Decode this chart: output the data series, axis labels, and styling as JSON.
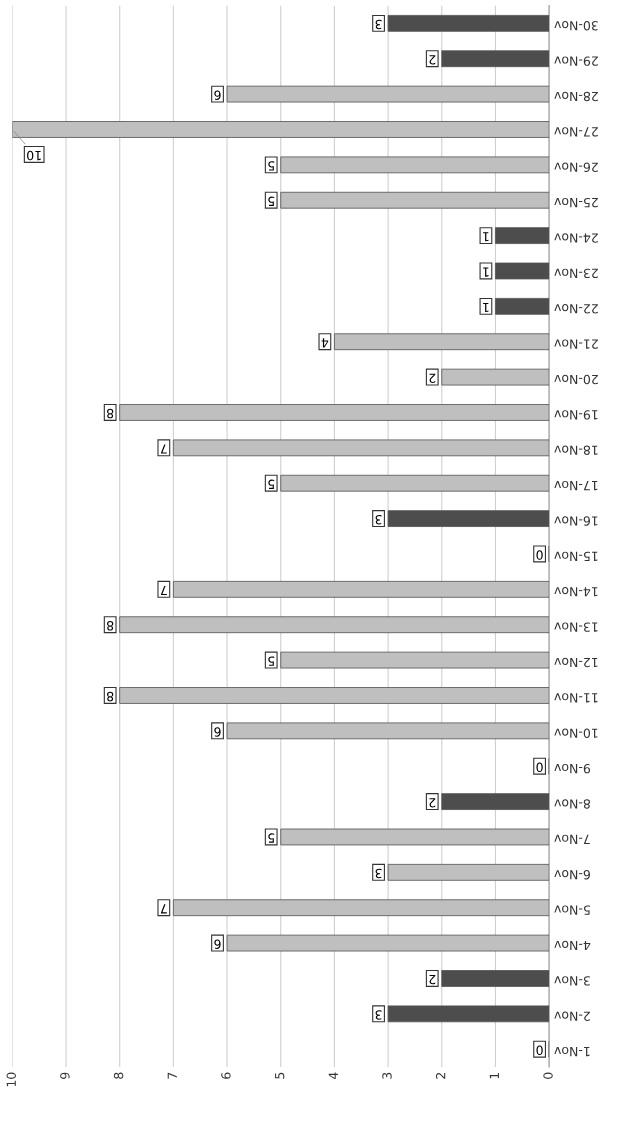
{
  "chart_data": {
    "type": "bar",
    "orientation": "horizontal",
    "categories": [
      "30-Nov",
      "29-Nov",
      "28-Nov",
      "27-Nov",
      "26-Nov",
      "25-Nov",
      "24-Nov",
      "23-Nov",
      "22-Nov",
      "21-Nov",
      "20-Nov",
      "19-Nov",
      "18-Nov",
      "17-Nov",
      "16-Nov",
      "15-Nov",
      "14-Nov",
      "13-Nov",
      "12-Nov",
      "11-Nov",
      "10-Nov",
      "9-Nov",
      "8-Nov",
      "7-Nov",
      "6-Nov",
      "5-Nov",
      "4-Nov",
      "3-Nov",
      "2-Nov",
      "1-Nov"
    ],
    "values": [
      3,
      2,
      6,
      10,
      5,
      5,
      1,
      1,
      1,
      4,
      2,
      8,
      7,
      5,
      3,
      0,
      7,
      8,
      5,
      8,
      6,
      0,
      2,
      5,
      3,
      7,
      6,
      2,
      3,
      0
    ],
    "colors": [
      "#4d4d4d",
      "#4d4d4d",
      "#bfbfbf",
      "#bfbfbf",
      "#bfbfbf",
      "#bfbfbf",
      "#4d4d4d",
      "#4d4d4d",
      "#4d4d4d",
      "#bfbfbf",
      "#bfbfbf",
      "#bfbfbf",
      "#bfbfbf",
      "#bfbfbf",
      "#4d4d4d",
      "#4d4d4d",
      "#bfbfbf",
      "#bfbfbf",
      "#bfbfbf",
      "#bfbfbf",
      "#bfbfbf",
      "#4d4d4d",
      "#4d4d4d",
      "#bfbfbf",
      "#bfbfbf",
      "#bfbfbf",
      "#bfbfbf",
      "#4d4d4d",
      "#4d4d4d",
      "#4d4d4d"
    ],
    "xlim": [
      10,
      0
    ],
    "xticks": [
      10,
      9,
      8,
      7,
      6,
      5,
      4,
      3,
      2,
      1,
      0
    ],
    "grid": "x",
    "data_labels": true
  }
}
